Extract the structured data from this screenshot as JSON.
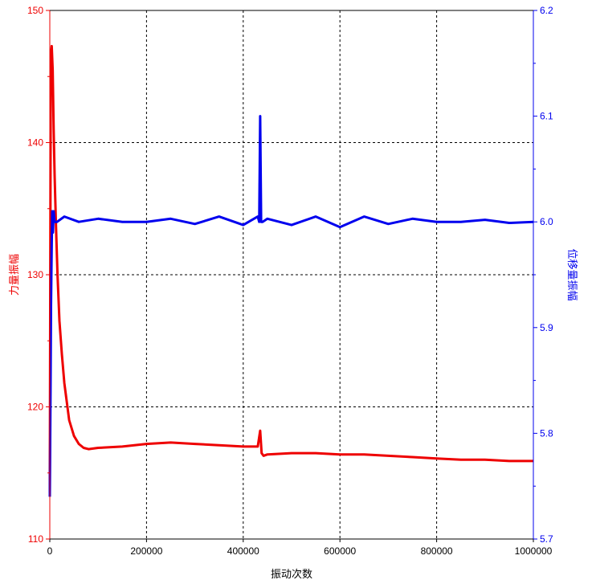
{
  "chart_data": {
    "type": "line",
    "xlabel": "振动次数",
    "ylabel_left": "力量振幅",
    "ylabel_right": "位移量振幅",
    "xlim": [
      0,
      1000000
    ],
    "ylim_left": [
      110,
      150
    ],
    "ylim_right": [
      5.7,
      6.2
    ],
    "x_ticks": [
      "0",
      "200000",
      "400000",
      "600000",
      "800000",
      "1000000"
    ],
    "y_left_ticks": [
      "110",
      "120",
      "130",
      "140",
      "150"
    ],
    "y_right_ticks": [
      "5.7",
      "5.8",
      "5.9",
      "6.0",
      "6.1",
      "6.2"
    ],
    "grid": true,
    "series": [
      {
        "axis": "left",
        "color": "#ee0000",
        "x": [
          0,
          2000,
          4000,
          6000,
          8000,
          10000,
          13000,
          16000,
          20000,
          25000,
          30000,
          40000,
          50000,
          60000,
          70000,
          80000,
          100000,
          150000,
          200000,
          250000,
          300000,
          350000,
          400000,
          430000,
          435000,
          438000,
          442000,
          450000,
          500000,
          550000,
          600000,
          650000,
          700000,
          750000,
          800000,
          850000,
          900000,
          950000,
          1000000
        ],
        "values": [
          113.5,
          146.5,
          147.3,
          145.5,
          141.0,
          137.5,
          133.5,
          130.0,
          126.5,
          124.0,
          121.8,
          119.0,
          117.8,
          117.2,
          116.9,
          116.8,
          116.9,
          117.0,
          117.2,
          117.3,
          117.2,
          117.1,
          117.0,
          117.0,
          118.2,
          116.5,
          116.3,
          116.4,
          116.5,
          116.5,
          116.4,
          116.4,
          116.3,
          116.2,
          116.1,
          116.0,
          116.0,
          115.9,
          115.9
        ]
      },
      {
        "axis": "right",
        "color": "#0000ee",
        "x": [
          0,
          1500,
          2500,
          4000,
          5000,
          6500,
          8000,
          10000,
          15000,
          30000,
          60000,
          100000,
          150000,
          200000,
          250000,
          300000,
          350000,
          400000,
          430000,
          433000,
          435000,
          437000,
          440000,
          450000,
          500000,
          550000,
          600000,
          650000,
          700000,
          750000,
          800000,
          850000,
          900000,
          950000,
          1000000
        ],
        "values": [
          5.74,
          5.84,
          5.92,
          5.98,
          6.01,
          5.99,
          6.01,
          6.0,
          6.0,
          6.005,
          6.0,
          6.003,
          6.0,
          6.0,
          6.003,
          5.998,
          6.005,
          5.997,
          6.005,
          6.0,
          6.1,
          6.0,
          6.0,
          6.003,
          5.997,
          6.005,
          5.995,
          6.005,
          5.998,
          6.003,
          6.0,
          6.0,
          6.002,
          5.999,
          6.0
        ]
      }
    ]
  }
}
